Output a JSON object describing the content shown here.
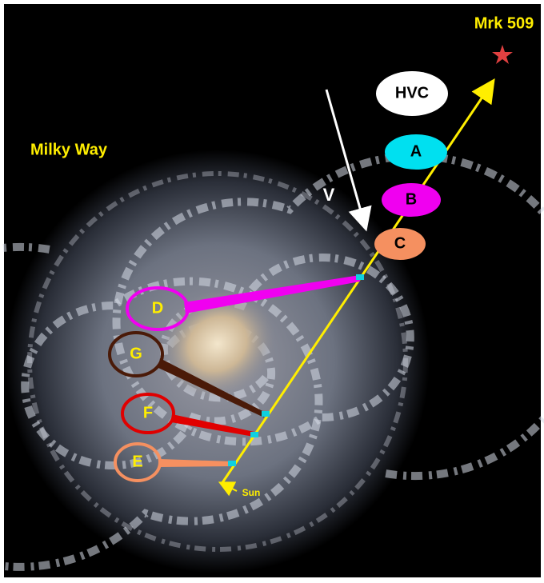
{
  "target": "Mrk 509",
  "galaxy": "Milky Way",
  "velocity": "V",
  "sun": "Sun",
  "clouds": [
    "HVC",
    "A",
    "B",
    "C"
  ],
  "absorbers": [
    "D",
    "G",
    "F",
    "E"
  ]
}
